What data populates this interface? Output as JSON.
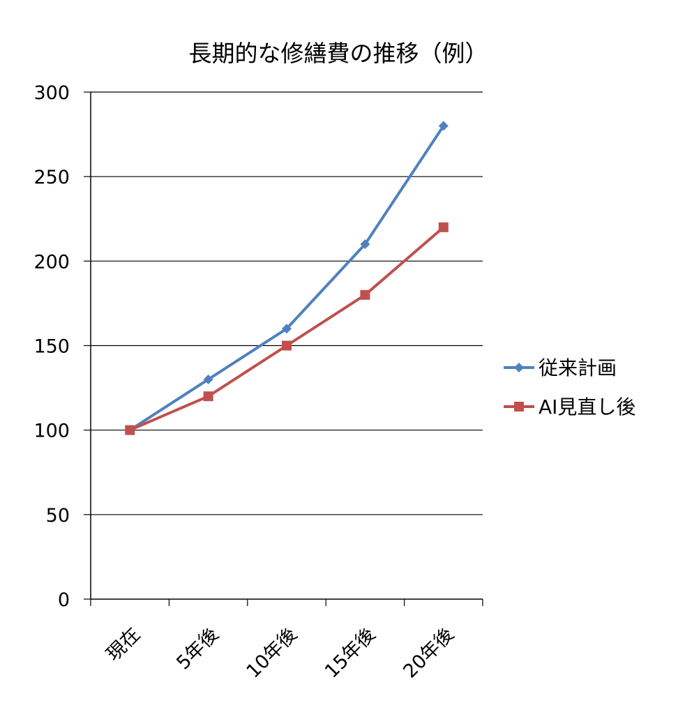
{
  "chart_data": {
    "type": "line",
    "title": "長期的な修繕費の推移（例）",
    "categories": [
      "現在",
      "5年後",
      "10年後",
      "15年後",
      "20年後"
    ],
    "series": [
      {
        "name": "従来計画",
        "values": [
          100,
          130,
          160,
          210,
          280
        ],
        "color": "#4F81BD",
        "marker": "diamond"
      },
      {
        "name": "AI見直し後",
        "values": [
          100,
          120,
          150,
          180,
          220
        ],
        "color": "#C0504D",
        "marker": "square"
      }
    ],
    "ylim": [
      0,
      300
    ],
    "yticks": [
      0,
      50,
      100,
      150,
      200,
      250,
      300
    ],
    "grid": true,
    "legend": "right"
  }
}
